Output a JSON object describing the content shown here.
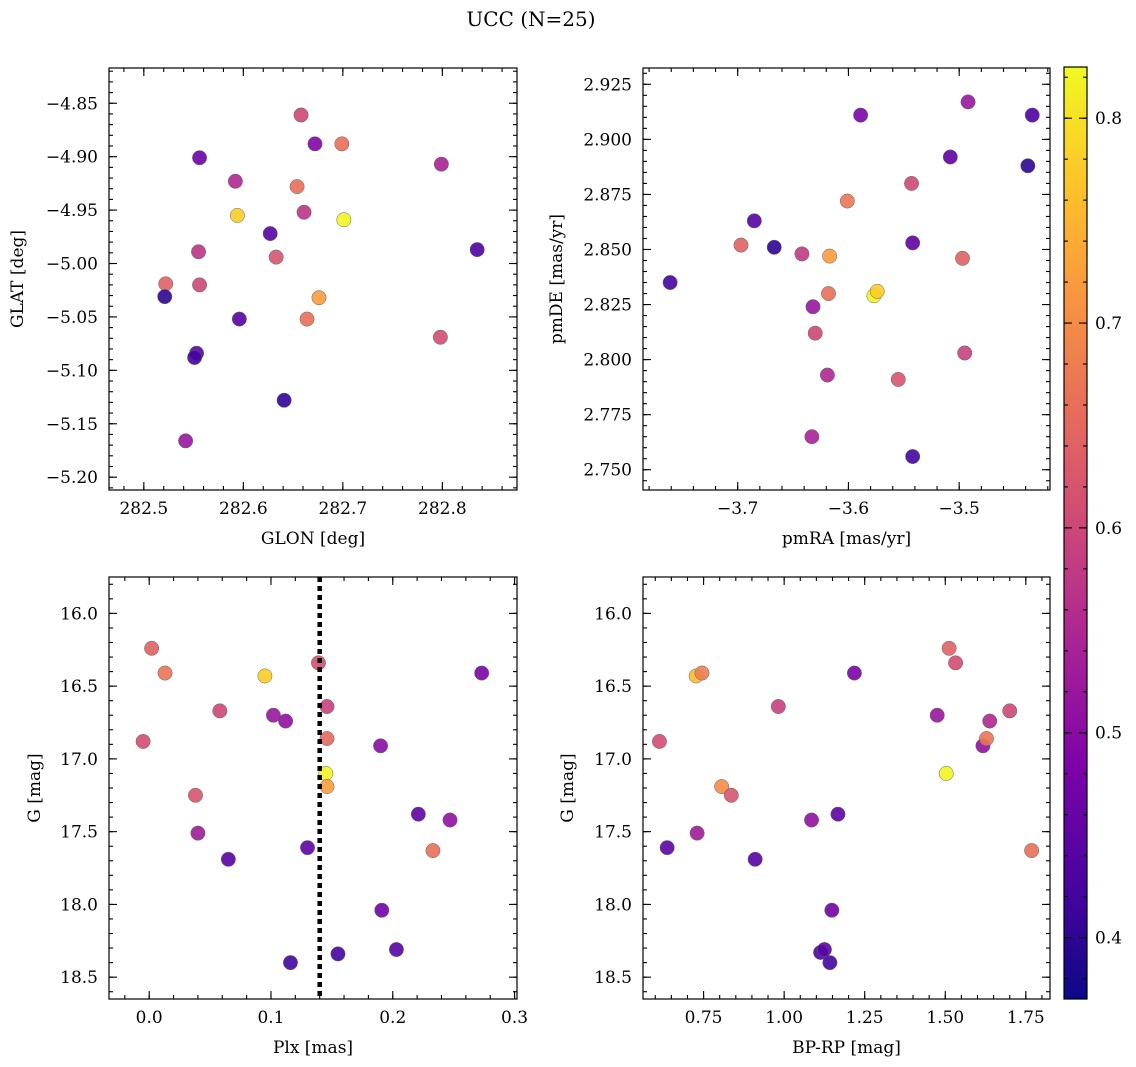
{
  "title": "UCC (N=25)",
  "chart_data": [
    {
      "type": "scatter",
      "xlabel": "GLON [deg]",
      "ylabel": "GLAT [deg]",
      "xlim": [
        282.465,
        282.875
      ],
      "ylim": [
        -5.212,
        -4.817
      ],
      "xticks": [
        282.5,
        282.6,
        282.7,
        282.8
      ],
      "yticks": [
        -4.85,
        -4.9,
        -4.95,
        -5.0,
        -5.05,
        -5.1,
        -5.15,
        -5.2
      ],
      "xminor": 0.02,
      "yminor": 0.01,
      "points": [
        {
          "x": 282.522,
          "y": -5.019,
          "c": 0.64
        },
        {
          "x": 282.521,
          "y": -5.031,
          "c": 0.4
        },
        {
          "x": 282.556,
          "y": -4.901,
          "c": 0.46
        },
        {
          "x": 282.592,
          "y": -4.923,
          "c": 0.55
        },
        {
          "x": 282.555,
          "y": -4.989,
          "c": 0.57
        },
        {
          "x": 282.556,
          "y": -5.02,
          "c": 0.6
        },
        {
          "x": 282.594,
          "y": -4.955,
          "c": 0.78
        },
        {
          "x": 282.553,
          "y": -5.084,
          "c": 0.44
        },
        {
          "x": 282.551,
          "y": -5.088,
          "c": 0.42
        },
        {
          "x": 282.596,
          "y": -5.052,
          "c": 0.44
        },
        {
          "x": 282.542,
          "y": -5.166,
          "c": 0.52
        },
        {
          "x": 282.658,
          "y": -4.861,
          "c": 0.6
        },
        {
          "x": 282.672,
          "y": -4.888,
          "c": 0.49
        },
        {
          "x": 282.699,
          "y": -4.888,
          "c": 0.66
        },
        {
          "x": 282.654,
          "y": -4.928,
          "c": 0.66
        },
        {
          "x": 282.661,
          "y": -4.952,
          "c": 0.57
        },
        {
          "x": 282.701,
          "y": -4.959,
          "c": 0.82
        },
        {
          "x": 282.627,
          "y": -4.972,
          "c": 0.44
        },
        {
          "x": 282.633,
          "y": -4.994,
          "c": 0.62
        },
        {
          "x": 282.676,
          "y": -5.032,
          "c": 0.72
        },
        {
          "x": 282.664,
          "y": -5.052,
          "c": 0.66
        },
        {
          "x": 282.641,
          "y": -5.128,
          "c": 0.4
        },
        {
          "x": 282.799,
          "y": -4.907,
          "c": 0.54
        },
        {
          "x": 282.835,
          "y": -4.987,
          "c": 0.43
        },
        {
          "x": 282.798,
          "y": -5.069,
          "c": 0.61
        }
      ]
    },
    {
      "type": "scatter",
      "xlabel": "pmRA [mas/yr]",
      "ylabel": "pmDE [mas/yr]",
      "xlim": [
        -3.7855,
        -3.418
      ],
      "ylim": [
        2.7408,
        2.9324
      ],
      "xticks": [
        -3.7,
        -3.6,
        -3.5
      ],
      "yticks": [
        2.75,
        2.775,
        2.8,
        2.825,
        2.85,
        2.875,
        2.9,
        2.925
      ],
      "xminor": 0.02,
      "yminor": 0.005,
      "points": [
        {
          "x": -3.761,
          "y": 2.835,
          "c": 0.42
        },
        {
          "x": -3.697,
          "y": 2.852,
          "c": 0.64
        },
        {
          "x": -3.685,
          "y": 2.863,
          "c": 0.44
        },
        {
          "x": -3.667,
          "y": 2.851,
          "c": 0.4
        },
        {
          "x": -3.642,
          "y": 2.848,
          "c": 0.58
        },
        {
          "x": -3.617,
          "y": 2.847,
          "c": 0.72
        },
        {
          "x": -3.632,
          "y": 2.824,
          "c": 0.52
        },
        {
          "x": -3.63,
          "y": 2.812,
          "c": 0.6
        },
        {
          "x": -3.618,
          "y": 2.83,
          "c": 0.66
        },
        {
          "x": -3.601,
          "y": 2.872,
          "c": 0.67
        },
        {
          "x": -3.589,
          "y": 2.911,
          "c": 0.48
        },
        {
          "x": -3.619,
          "y": 2.793,
          "c": 0.55
        },
        {
          "x": -3.633,
          "y": 2.765,
          "c": 0.54
        },
        {
          "x": -3.555,
          "y": 2.791,
          "c": 0.62
        },
        {
          "x": -3.577,
          "y": 2.829,
          "c": 0.82
        },
        {
          "x": -3.574,
          "y": 2.831,
          "c": 0.78
        },
        {
          "x": -3.543,
          "y": 2.88,
          "c": 0.6
        },
        {
          "x": -3.542,
          "y": 2.853,
          "c": 0.45
        },
        {
          "x": -3.542,
          "y": 2.756,
          "c": 0.42
        },
        {
          "x": -3.508,
          "y": 2.892,
          "c": 0.45
        },
        {
          "x": -3.492,
          "y": 2.917,
          "c": 0.52
        },
        {
          "x": -3.497,
          "y": 2.846,
          "c": 0.64
        },
        {
          "x": -3.495,
          "y": 2.803,
          "c": 0.59
        },
        {
          "x": -3.438,
          "y": 2.888,
          "c": 0.4
        },
        {
          "x": -3.434,
          "y": 2.911,
          "c": 0.43
        }
      ]
    },
    {
      "type": "scatter",
      "xlabel": "Plx [mas]",
      "ylabel": "G [mag]",
      "xlim": [
        -0.033,
        0.302
      ],
      "ylim": [
        18.65,
        15.75
      ],
      "xticks": [
        0.0,
        0.1,
        0.2,
        0.3
      ],
      "yticks": [
        16.0,
        16.5,
        17.0,
        17.5,
        18.0,
        18.5
      ],
      "xminor": 0.02,
      "yminor": 0.1,
      "vline": {
        "x": 0.14
      },
      "points": [
        {
          "x": 0.002,
          "y": 16.24,
          "c": 0.64
        },
        {
          "x": 0.013,
          "y": 16.41,
          "c": 0.67
        },
        {
          "x": -0.005,
          "y": 16.88,
          "c": 0.61
        },
        {
          "x": 0.058,
          "y": 16.67,
          "c": 0.6
        },
        {
          "x": 0.038,
          "y": 17.25,
          "c": 0.62
        },
        {
          "x": 0.04,
          "y": 17.51,
          "c": 0.53
        },
        {
          "x": 0.065,
          "y": 17.69,
          "c": 0.44
        },
        {
          "x": 0.095,
          "y": 16.43,
          "c": 0.78
        },
        {
          "x": 0.102,
          "y": 16.7,
          "c": 0.52
        },
        {
          "x": 0.112,
          "y": 16.74,
          "c": 0.51
        },
        {
          "x": 0.13,
          "y": 17.61,
          "c": 0.45
        },
        {
          "x": 0.116,
          "y": 18.4,
          "c": 0.42
        },
        {
          "x": 0.139,
          "y": 16.34,
          "c": 0.61
        },
        {
          "x": 0.146,
          "y": 16.64,
          "c": 0.59
        },
        {
          "x": 0.146,
          "y": 16.86,
          "c": 0.65
        },
        {
          "x": 0.145,
          "y": 17.1,
          "c": 0.82
        },
        {
          "x": 0.146,
          "y": 17.19,
          "c": 0.72
        },
        {
          "x": 0.155,
          "y": 18.34,
          "c": 0.42
        },
        {
          "x": 0.19,
          "y": 16.91,
          "c": 0.5
        },
        {
          "x": 0.191,
          "y": 18.04,
          "c": 0.47
        },
        {
          "x": 0.203,
          "y": 18.31,
          "c": 0.44
        },
        {
          "x": 0.221,
          "y": 17.38,
          "c": 0.45
        },
        {
          "x": 0.233,
          "y": 17.63,
          "c": 0.66
        },
        {
          "x": 0.247,
          "y": 17.42,
          "c": 0.51
        },
        {
          "x": 0.273,
          "y": 16.41,
          "c": 0.48
        }
      ]
    },
    {
      "type": "scatter",
      "xlabel": "BP-RP [mag]",
      "ylabel": "G [mag]",
      "xlim": [
        0.562,
        1.825
      ],
      "ylim": [
        18.65,
        15.75
      ],
      "xticks": [
        0.75,
        1.0,
        1.25,
        1.5,
        1.75
      ],
      "yticks": [
        16.0,
        16.5,
        17.0,
        17.5,
        18.0,
        18.5
      ],
      "xminor": 0.05,
      "yminor": 0.1,
      "points": [
        {
          "x": 0.613,
          "y": 16.88,
          "c": 0.61
        },
        {
          "x": 0.637,
          "y": 17.61,
          "c": 0.45
        },
        {
          "x": 0.727,
          "y": 16.43,
          "c": 0.76
        },
        {
          "x": 0.745,
          "y": 16.41,
          "c": 0.68
        },
        {
          "x": 0.73,
          "y": 17.51,
          "c": 0.53
        },
        {
          "x": 0.806,
          "y": 17.19,
          "c": 0.7
        },
        {
          "x": 0.836,
          "y": 17.25,
          "c": 0.62
        },
        {
          "x": 0.91,
          "y": 17.69,
          "c": 0.44
        },
        {
          "x": 0.982,
          "y": 16.64,
          "c": 0.59
        },
        {
          "x": 1.085,
          "y": 17.42,
          "c": 0.51
        },
        {
          "x": 1.113,
          "y": 18.33,
          "c": 0.43
        },
        {
          "x": 1.125,
          "y": 18.31,
          "c": 0.44
        },
        {
          "x": 1.142,
          "y": 18.4,
          "c": 0.42
        },
        {
          "x": 1.148,
          "y": 18.04,
          "c": 0.47
        },
        {
          "x": 1.167,
          "y": 17.38,
          "c": 0.45
        },
        {
          "x": 1.218,
          "y": 16.41,
          "c": 0.48
        },
        {
          "x": 1.475,
          "y": 16.7,
          "c": 0.52
        },
        {
          "x": 1.503,
          "y": 17.1,
          "c": 0.82
        },
        {
          "x": 1.512,
          "y": 16.24,
          "c": 0.64
        },
        {
          "x": 1.532,
          "y": 16.34,
          "c": 0.61
        },
        {
          "x": 1.617,
          "y": 16.91,
          "c": 0.51
        },
        {
          "x": 1.628,
          "y": 16.86,
          "c": 0.67
        },
        {
          "x": 1.638,
          "y": 16.74,
          "c": 0.55
        },
        {
          "x": 1.7,
          "y": 16.67,
          "c": 0.6
        },
        {
          "x": 1.768,
          "y": 17.63,
          "c": 0.66
        }
      ]
    }
  ],
  "colorbar": {
    "colormap": "plasma",
    "range": [
      0.37,
      0.825
    ],
    "ticks": [
      0.4,
      0.5,
      0.6,
      0.7,
      0.8
    ],
    "minor": 0.02
  }
}
